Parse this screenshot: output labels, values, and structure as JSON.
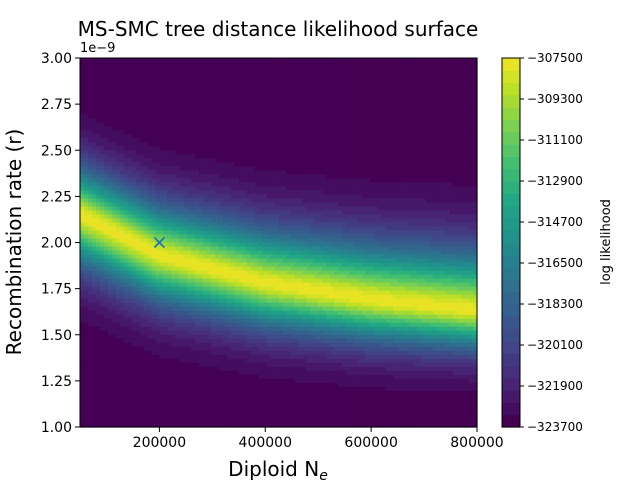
{
  "chart_data": {
    "type": "heatmap",
    "title": "MS-SMC tree distance likelihood surface",
    "xlabel_base": "Diploid N",
    "xlabel_sub": "e",
    "ylabel": "Recombination rate (r)",
    "y_offset_label": "1e−9",
    "xlim": [
      50000,
      800000
    ],
    "ylim": [
      1e-09,
      3e-09
    ],
    "x_ticks": [
      {
        "value": 200000,
        "label": "200000"
      },
      {
        "value": 400000,
        "label": "400000"
      },
      {
        "value": 600000,
        "label": "600000"
      },
      {
        "value": 800000,
        "label": "800000"
      }
    ],
    "y_ticks": [
      {
        "value": 1e-09,
        "label": "1.00"
      },
      {
        "value": 1.25e-09,
        "label": "1.25"
      },
      {
        "value": 1.5e-09,
        "label": "1.50"
      },
      {
        "value": 1.75e-09,
        "label": "1.75"
      },
      {
        "value": 2e-09,
        "label": "2.00"
      },
      {
        "value": 2.25e-09,
        "label": "2.25"
      },
      {
        "value": 2.5e-09,
        "label": "2.50"
      },
      {
        "value": 2.75e-09,
        "label": "2.75"
      },
      {
        "value": 3e-09,
        "label": "3.00"
      }
    ],
    "marker": {
      "x": 200000,
      "y": 2e-09,
      "symbol": "x",
      "color": "#1f77b4"
    },
    "colorbar": {
      "label": "log likelihood",
      "vmin": -323700,
      "vmax": -307500,
      "ticks": [
        {
          "value": -307500,
          "label": "−307500"
        },
        {
          "value": -309300,
          "label": "−309300"
        },
        {
          "value": -311100,
          "label": "−311100"
        },
        {
          "value": -312900,
          "label": "−312900"
        },
        {
          "value": -314700,
          "label": "−314700"
        },
        {
          "value": -316500,
          "label": "−316500"
        },
        {
          "value": -318300,
          "label": "−318300"
        },
        {
          "value": -320100,
          "label": "−320100"
        },
        {
          "value": -321900,
          "label": "−321900"
        },
        {
          "value": -323700,
          "label": "−323700"
        }
      ],
      "colormap": "viridis"
    },
    "ridge": {
      "description_points_r": [
        {
          "ne": 50000,
          "r": 2.15e-09
        },
        {
          "ne": 200000,
          "r": 1.93e-09
        },
        {
          "ne": 400000,
          "r": 1.78e-09
        },
        {
          "ne": 600000,
          "r": 1.69e-09
        },
        {
          "ne": 800000,
          "r": 1.63e-09
        }
      ]
    }
  }
}
